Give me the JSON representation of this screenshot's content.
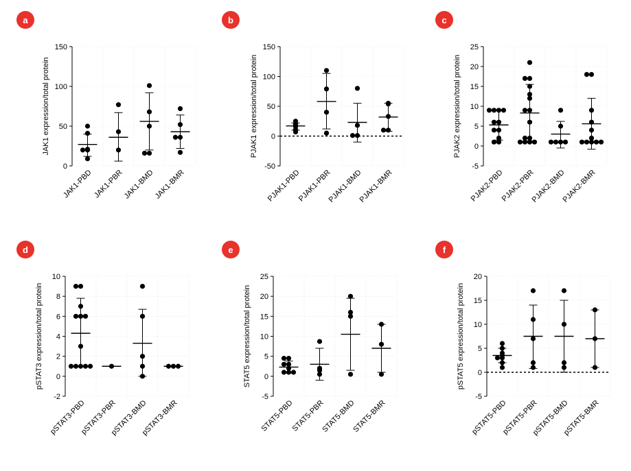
{
  "colors": {
    "badge": "#e8322b",
    "marks": "#000000",
    "axis": "#000000",
    "grid": "#dcdcdc"
  },
  "chart_data": [
    {
      "panel": "a",
      "type": "scatter",
      "ylabel": "JAK1 expression/total protein",
      "categories": [
        "JAK1-PBD",
        "JAK1-PBR",
        "JAK1-BMD",
        "JAK1-BMR"
      ],
      "ylim": [
        0,
        150
      ],
      "yticks": [
        0,
        50,
        100,
        150
      ],
      "zero_line": false,
      "groups": [
        {
          "points": [
            50,
            41,
            21,
            20,
            20,
            9
          ],
          "mean": 27,
          "sd_low": 12,
          "sd_high": 40
        },
        {
          "points": [
            77,
            43,
            20
          ],
          "mean": 36,
          "sd_low": 6,
          "sd_high": 67
        },
        {
          "points": [
            101,
            68,
            50,
            16,
            16
          ],
          "mean": 56,
          "sd_low": 20,
          "sd_high": 92
        },
        {
          "points": [
            72,
            52,
            36,
            36,
            17
          ],
          "mean": 43,
          "sd_low": 22,
          "sd_high": 64
        }
      ]
    },
    {
      "panel": "b",
      "type": "scatter",
      "ylabel": "PJAK1 expression/total protein",
      "categories": [
        "PJAK1-PBD",
        "PJAK1-PBR",
        "PJAK1-BMD",
        "PJAK1-BMR"
      ],
      "ylim": [
        -50,
        150
      ],
      "yticks": [
        -50,
        0,
        50,
        100,
        150
      ],
      "zero_line": true,
      "groups": [
        {
          "points": [
            25,
            20,
            17,
            16,
            11,
            7
          ],
          "mean": 17,
          "sd_low": 10,
          "sd_high": 22
        },
        {
          "points": [
            110,
            79,
            40,
            5
          ],
          "mean": 58,
          "sd_low": 12,
          "sd_high": 105
        },
        {
          "points": [
            80,
            18,
            1,
            1
          ],
          "mean": 23,
          "sd_low": -10,
          "sd_high": 55
        },
        {
          "points": [
            55,
            54,
            33,
            10,
            10
          ],
          "mean": 32,
          "sd_low": 8,
          "sd_high": 55
        }
      ]
    },
    {
      "panel": "c",
      "type": "scatter",
      "ylabel": "PJAK2 expression/total protein",
      "categories": [
        "PJAK2-PBD",
        "PJAK2-PBR",
        "PJAK2-BMD",
        "PJAK2-BMR"
      ],
      "ylim": [
        -5,
        25
      ],
      "yticks": [
        -5,
        0,
        5,
        10,
        15,
        20,
        25
      ],
      "zero_line": false,
      "groups": [
        {
          "points": [
            9,
            9,
            9,
            9,
            6,
            6,
            4,
            4,
            2,
            1,
            1
          ],
          "mean": 5.3,
          "sd_low": 1.5,
          "sd_high": 9
        },
        {
          "points": [
            21,
            17,
            17,
            15,
            13,
            12,
            9,
            9,
            6,
            2,
            2,
            1,
            1,
            1,
            1
          ],
          "mean": 8.3,
          "sd_low": 1.3,
          "sd_high": 15.5
        },
        {
          "points": [
            9,
            5,
            1,
            1,
            1,
            1
          ],
          "mean": 3,
          "sd_low": -0.5,
          "sd_high": 6.2
        },
        {
          "points": [
            18,
            18,
            9,
            6,
            4,
            2,
            1,
            1,
            1,
            1,
            1
          ],
          "mean": 5.6,
          "sd_low": -0.8,
          "sd_high": 12
        }
      ]
    },
    {
      "panel": "d",
      "type": "scatter",
      "ylabel": "pSTAT3 expression/total protein",
      "categories": [
        "pSTAT3-PBD",
        "pSTAT3-PBR",
        "pSTAT3-BMD",
        "pSTAT3-BMR"
      ],
      "ylim": [
        -2,
        10
      ],
      "yticks": [
        -2,
        0,
        2,
        4,
        6,
        8,
        10
      ],
      "zero_line": false,
      "groups": [
        {
          "points": [
            9,
            9,
            7,
            6,
            6,
            6,
            3,
            1,
            1,
            1,
            1,
            1
          ],
          "mean": 4.3,
          "sd_low": 1,
          "sd_high": 7.8
        },
        {
          "points": [
            1
          ],
          "mean": 1,
          "sd_low": 1,
          "sd_high": 1
        },
        {
          "points": [
            9,
            6,
            2,
            1,
            0
          ],
          "mean": 3.3,
          "sd_low": 0,
          "sd_high": 6.7
        },
        {
          "points": [
            1,
            1,
            1
          ],
          "mean": 1,
          "sd_low": 1,
          "sd_high": 1
        }
      ]
    },
    {
      "panel": "e",
      "type": "scatter",
      "ylabel": "STAT5 expression/total protein",
      "categories": [
        "STAT5-PBD",
        "STAT5-PBR",
        "STAT5-BMD",
        "STAT5-BMR"
      ],
      "ylim": [
        -5,
        25
      ],
      "yticks": [
        -5,
        0,
        5,
        10,
        15,
        20,
        25
      ],
      "zero_line": false,
      "groups": [
        {
          "points": [
            4.5,
            4.5,
            3,
            3,
            2,
            1,
            1,
            1
          ],
          "mean": 2.3,
          "sd_low": 0.8,
          "sd_high": 3.8
        },
        {
          "points": [
            8.7,
            2,
            1.5,
            0.5
          ],
          "mean": 3,
          "sd_low": -1,
          "sd_high": 7
        },
        {
          "points": [
            20,
            16,
            15,
            0.5
          ],
          "mean": 10.5,
          "sd_low": 1.5,
          "sd_high": 19.5
        },
        {
          "points": [
            13,
            8,
            0.5
          ],
          "mean": 7,
          "sd_low": 1,
          "sd_high": 13
        }
      ]
    },
    {
      "panel": "f",
      "type": "scatter",
      "ylabel": "pSTAT5 expression/total protein",
      "categories": [
        "pSTAT5-PBD",
        "pSTAT5-PBR",
        "pSTAT5-BMD",
        "pSTAT5-BMR"
      ],
      "ylim": [
        -5,
        20
      ],
      "yticks": [
        -5,
        0,
        5,
        10,
        15,
        20
      ],
      "zero_line": true,
      "groups": [
        {
          "points": [
            6,
            5,
            4,
            3.5,
            3,
            3,
            2,
            1
          ],
          "mean": 3.5,
          "sd_low": 2,
          "sd_high": 5
        },
        {
          "points": [
            17,
            11,
            7,
            2,
            1
          ],
          "mean": 7.5,
          "sd_low": 0.8,
          "sd_high": 14
        },
        {
          "points": [
            17,
            10,
            2,
            1
          ],
          "mean": 7.5,
          "sd_low": 0,
          "sd_high": 15
        },
        {
          "points": [
            13,
            7,
            1
          ],
          "mean": 7,
          "sd_low": 1,
          "sd_high": 13
        }
      ]
    }
  ]
}
